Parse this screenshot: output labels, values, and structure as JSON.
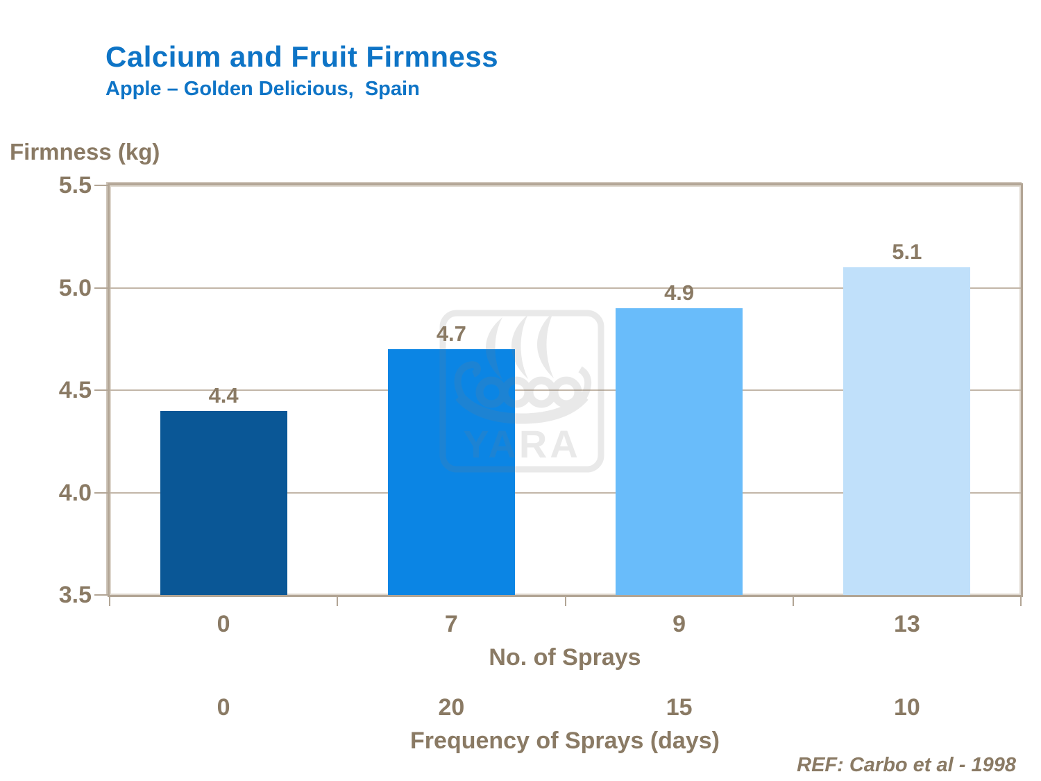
{
  "slide": {
    "title": "Calcium and Fruit Firmness",
    "subtitle": "Apple – Golden Delicious,  Spain",
    "reference": "REF: Carbo et al - 1998"
  },
  "watermark": {
    "name": "yara-logo",
    "text": "YARA"
  },
  "colors": {
    "title_blue": "#0E74C6",
    "text_brown": "#8A7A64",
    "axis_frame_tan": "#B2A595",
    "gridline_tan": "#C2B6A8",
    "watermark_gray": "#7D7D7D"
  },
  "chart_data": {
    "type": "bar",
    "title": "Calcium and Fruit Firmness",
    "subtitle": "Apple – Golden Delicious,  Spain",
    "ylabel": "Firmness (kg)",
    "ylim": [
      3.5,
      5.5
    ],
    "yticks": [
      5.5,
      5.0,
      4.5,
      4.0,
      3.5
    ],
    "ytick_labels": [
      "5.5",
      "5.0",
      "4.5",
      "4.0",
      "3.5"
    ],
    "grid": true,
    "legend": "none",
    "categories": [
      "0",
      "7",
      "9",
      "13"
    ],
    "values": [
      4.4,
      4.7,
      4.9,
      5.1
    ],
    "data_labels": [
      "4.4",
      "4.7",
      "4.9",
      "5.1"
    ],
    "bar_colors": [
      "#0A5796",
      "#0B85E4",
      "#69BCFA",
      "#C0E0FA"
    ],
    "xlabel_primary": "No. of Sprays",
    "secondary_categories": [
      "0",
      "20",
      "15",
      "10"
    ],
    "xlabel_secondary": "Frequency of Sprays (days)",
    "annotation": "REF: Carbo et al - 1998"
  }
}
